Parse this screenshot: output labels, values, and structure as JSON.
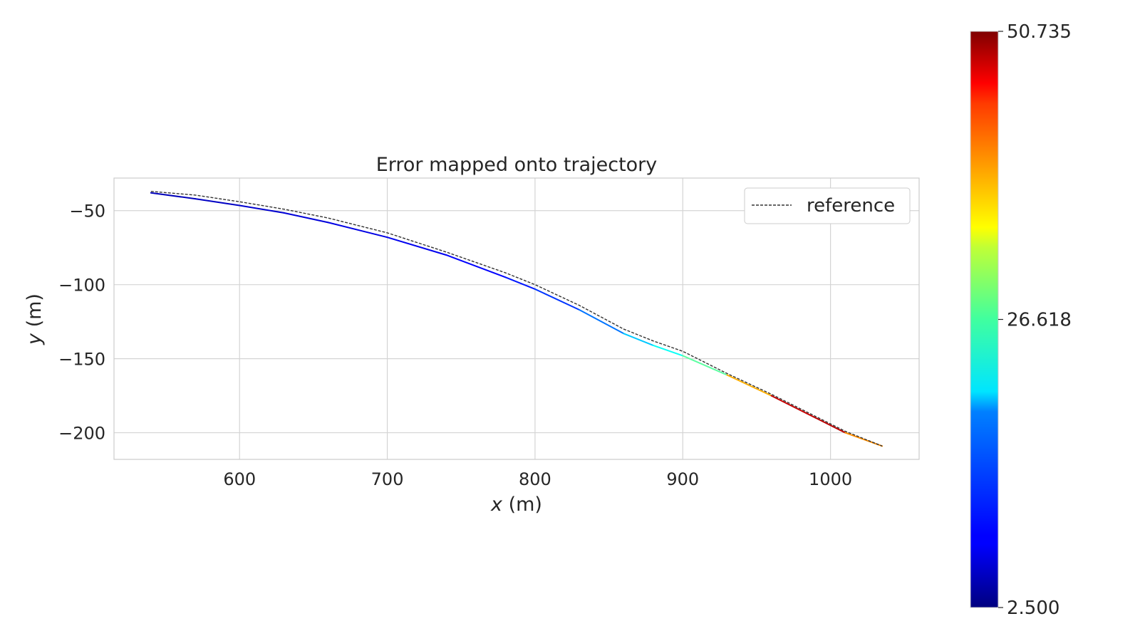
{
  "chart_data": {
    "type": "line",
    "title": "Error mapped onto trajectory",
    "xlabel_var": "x",
    "xlabel_unit": " (m)",
    "ylabel_var": "y",
    "ylabel_unit": " (m)",
    "xlim": [
      515,
      1060
    ],
    "ylim": [
      -218,
      -28
    ],
    "xticks": [
      600,
      700,
      800,
      900,
      1000
    ],
    "xtick_labels": [
      "600",
      "700",
      "800",
      "900",
      "1000"
    ],
    "yticks": [
      -50,
      -100,
      -150,
      -200
    ],
    "ytick_labels": [
      "−50",
      "−100",
      "−150",
      "−200"
    ],
    "grid": true,
    "legend": {
      "placement": "top-right",
      "entries": [
        {
          "label": "reference",
          "style": "dashed",
          "color": "#333333"
        }
      ]
    },
    "series": [
      {
        "name": "reference",
        "style": "dashed",
        "color": "#333333",
        "x": [
          540,
          570,
          600,
          630,
          660,
          700,
          740,
          780,
          800,
          830,
          860,
          880,
          900,
          930,
          960,
          990,
          1010,
          1035
        ],
        "y": [
          -37,
          -39.5,
          -44,
          -49,
          -55,
          -65,
          -78,
          -92,
          -100,
          -114,
          -130,
          -138,
          -145,
          -160,
          -174,
          -189,
          -199,
          -209
        ]
      },
      {
        "name": "",
        "style": "colormapped",
        "x": [
          540,
          570,
          600,
          630,
          660,
          700,
          740,
          780,
          800,
          830,
          860,
          880,
          900,
          930,
          960,
          990,
          1010,
          1035
        ],
        "y": [
          -38,
          -42,
          -46.5,
          -51.5,
          -58,
          -68,
          -80,
          -95,
          -103,
          -117,
          -133,
          -141,
          -148,
          -161,
          -175,
          -190,
          -200,
          -209
        ],
        "error": [
          5,
          5.5,
          6,
          6.5,
          7,
          7.5,
          8,
          9,
          10,
          12,
          16,
          20,
          22,
          28,
          45,
          50,
          46,
          30
        ]
      }
    ],
    "colorbar": {
      "colormap": "jet",
      "min": 2.5,
      "max": 50.735,
      "ticks": [
        2.5,
        26.618,
        50.735
      ],
      "tick_labels": [
        "2.500",
        "26.618",
        "50.735"
      ]
    }
  }
}
